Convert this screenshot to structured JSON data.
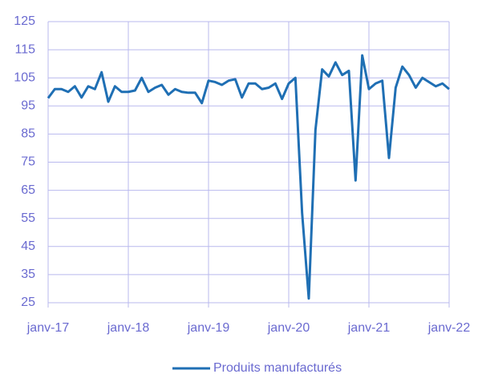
{
  "chart_data": {
    "type": "line",
    "categories": [
      "janv-17",
      null,
      null,
      null,
      null,
      null,
      null,
      null,
      null,
      null,
      null,
      null,
      "janv-18",
      null,
      null,
      null,
      null,
      null,
      null,
      null,
      null,
      null,
      null,
      null,
      "janv-19",
      null,
      null,
      null,
      null,
      null,
      null,
      null,
      null,
      null,
      null,
      null,
      "janv-20",
      null,
      null,
      null,
      null,
      null,
      null,
      null,
      null,
      null,
      null,
      null,
      "janv-21",
      null,
      null,
      null,
      null,
      null,
      null,
      null,
      null,
      null,
      null,
      null,
      "janv-22"
    ],
    "series": [
      {
        "name": "Produits manufacturés",
        "color": "#1f6fb4",
        "values": [
          97.8,
          101,
          101,
          100,
          102,
          98,
          102,
          101,
          107,
          96.5,
          102,
          100,
          100,
          100.5,
          105,
          100,
          101.5,
          102.5,
          99,
          101,
          100,
          99.7,
          99.7,
          96,
          104,
          103.5,
          102.5,
          104,
          104.5,
          98,
          103,
          103,
          101,
          101.5,
          103,
          97.5,
          103,
          105,
          57,
          26.5,
          86.5,
          108,
          105.5,
          110.5,
          106,
          107.5,
          68.5,
          113,
          101,
          103,
          104,
          76.5,
          101.5,
          109,
          106,
          101.5,
          105,
          103.5,
          102,
          103,
          101
        ]
      }
    ],
    "ylim": [
      25,
      125
    ],
    "yticks": [
      25,
      35,
      45,
      55,
      65,
      75,
      85,
      95,
      105,
      115,
      125
    ],
    "grid": true,
    "legend": "bottom"
  }
}
